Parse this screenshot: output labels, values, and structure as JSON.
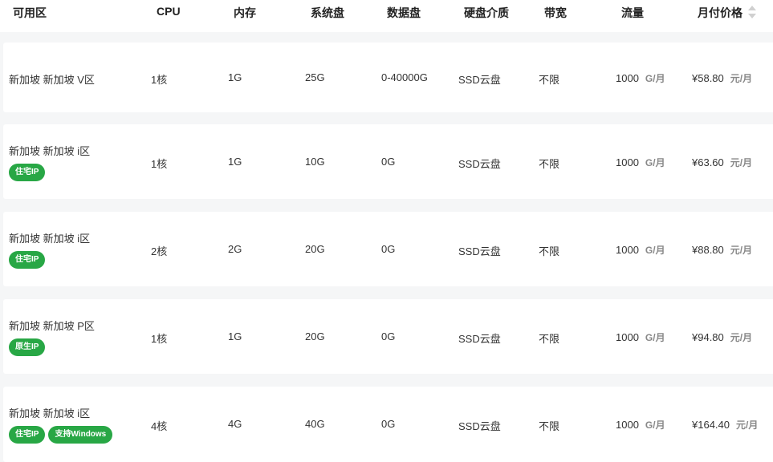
{
  "header": {
    "columns": [
      "可用区",
      "CPU",
      "内存",
      "系统盘",
      "数据盘",
      "硬盘介质",
      "带宽",
      "流量",
      "月付价格"
    ],
    "sort_icon": "sort-caret-icon"
  },
  "colors": {
    "tag_green": "#28a745"
  },
  "rows": [
    {
      "zone": "新加坡 新加坡 V区",
      "tags": [],
      "cpu": "1核",
      "mem": "1G",
      "sys": "25G",
      "data": "0-40000G",
      "media": "SSD云盘",
      "bw": "不限",
      "traffic": "1000",
      "traffic_unit": "G/月",
      "price": "¥58.80",
      "price_unit": "元/月"
    },
    {
      "zone": "新加坡 新加坡 i区",
      "tags": [
        "住宅IP"
      ],
      "cpu": "1核",
      "mem": "1G",
      "sys": "10G",
      "data": "0G",
      "media": "SSD云盘",
      "bw": "不限",
      "traffic": "1000",
      "traffic_unit": "G/月",
      "price": "¥63.60",
      "price_unit": "元/月"
    },
    {
      "zone": "新加坡 新加坡 i区",
      "tags": [
        "住宅IP"
      ],
      "cpu": "2核",
      "mem": "2G",
      "sys": "20G",
      "data": "0G",
      "media": "SSD云盘",
      "bw": "不限",
      "traffic": "1000",
      "traffic_unit": "G/月",
      "price": "¥88.80",
      "price_unit": "元/月"
    },
    {
      "zone": "新加坡 新加坡 P区",
      "tags": [
        "原生IP"
      ],
      "cpu": "1核",
      "mem": "1G",
      "sys": "20G",
      "data": "0G",
      "media": "SSD云盘",
      "bw": "不限",
      "traffic": "1000",
      "traffic_unit": "G/月",
      "price": "¥94.80",
      "price_unit": "元/月"
    },
    {
      "zone": "新加坡 新加坡 i区",
      "tags": [
        "住宅IP",
        "支持Windows"
      ],
      "cpu": "4核",
      "mem": "4G",
      "sys": "40G",
      "data": "0G",
      "media": "SSD云盘",
      "bw": "不限",
      "traffic": "1000",
      "traffic_unit": "G/月",
      "price": "¥164.40",
      "price_unit": "元/月"
    }
  ]
}
